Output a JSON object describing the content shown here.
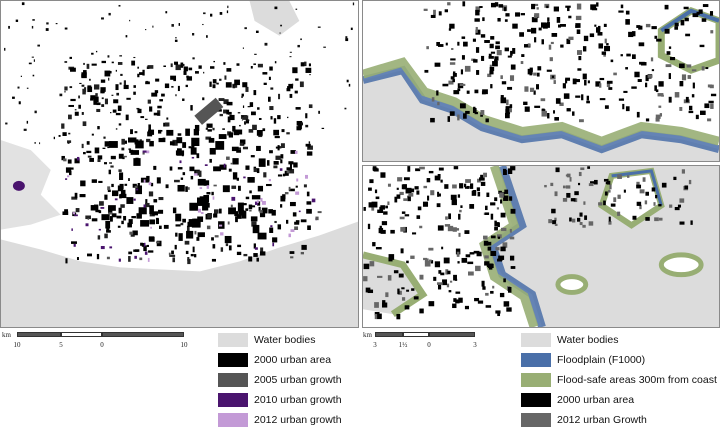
{
  "left_map": {
    "scalebar": {
      "unit": "km",
      "ticks": [
        "10",
        "5",
        "0",
        "10"
      ]
    },
    "legend": [
      {
        "label": "Water bodies",
        "color": "#dcdcdc"
      },
      {
        "label": "2000 urban area",
        "color": "#000000"
      },
      {
        "label": "2005 urban growth",
        "color": "#555555"
      },
      {
        "label": "2010 urban growth",
        "color": "#4a146e"
      },
      {
        "label": "2012 urban growth",
        "color": "#c39ad6"
      }
    ]
  },
  "right_map": {
    "scalebar": {
      "unit": "km",
      "ticks": [
        "3",
        "1½",
        "0",
        "3"
      ]
    },
    "legend": [
      {
        "label": "Water bodies",
        "color": "#dcdcdc"
      },
      {
        "label": "Floodplain (F1000)",
        "color": "#4a6fa8"
      },
      {
        "label": "Flood-safe areas 300m from coast",
        "color": "#98ae74"
      },
      {
        "label": "2000 urban area",
        "color": "#000000"
      },
      {
        "label": "2012 urban Growth",
        "color": "#666666"
      }
    ]
  }
}
